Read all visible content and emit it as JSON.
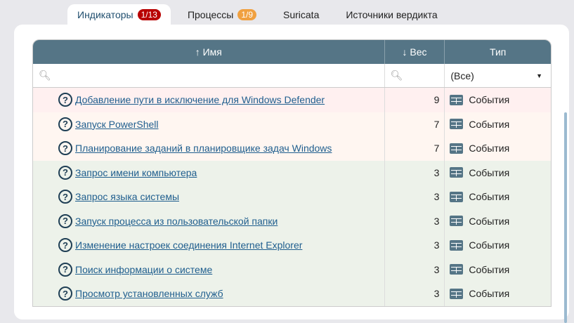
{
  "tabs": [
    {
      "label": "Индикаторы",
      "badge": "1/13",
      "badge_color": "#b80000",
      "active": true
    },
    {
      "label": "Процессы",
      "badge": "1/9",
      "badge_color": "#f0a040"
    },
    {
      "label": "Suricata"
    },
    {
      "label": "Источники вердикта"
    }
  ],
  "table": {
    "headers": {
      "name": "↑ Имя",
      "weight": "↓ Вес",
      "type": "Тип"
    },
    "filters": {
      "name_placeholder": "",
      "weight_placeholder": "",
      "type_value": "(Все)"
    },
    "rows": [
      {
        "name": "Добавление пути в исключение для Windows Defender",
        "weight": "9",
        "type": "События",
        "color": "#fff0f0"
      },
      {
        "name": "Запуск PowerShell",
        "weight": "7",
        "type": "События",
        "color": "#fff6f1"
      },
      {
        "name": "Планирование заданий в планировщике задач Windows",
        "weight": "7",
        "type": "События",
        "color": "#fff6f1"
      },
      {
        "name": "Запрос имени компьютера",
        "weight": "3",
        "type": "События",
        "color": "#edf2ea"
      },
      {
        "name": "Запрос языка системы",
        "weight": "3",
        "type": "События",
        "color": "#edf2ea"
      },
      {
        "name": "Запуск процесса из пользовательской папки",
        "weight": "3",
        "type": "События",
        "color": "#edf2ea"
      },
      {
        "name": "Изменение настроек соединения Internet Explorer",
        "weight": "3",
        "type": "События",
        "color": "#edf2ea"
      },
      {
        "name": "Поиск информации о системе",
        "weight": "3",
        "type": "События",
        "color": "#edf2ea"
      },
      {
        "name": "Просмотр установленных служб",
        "weight": "3",
        "type": "События",
        "color": "#edf2ea"
      }
    ]
  }
}
